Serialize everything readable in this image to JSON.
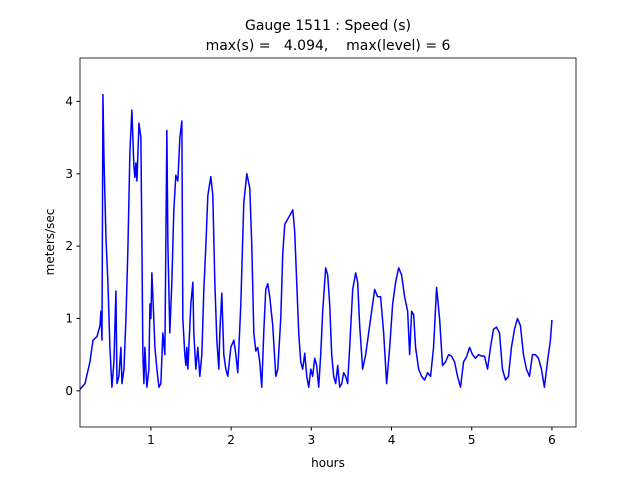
{
  "chart_data": {
    "type": "line",
    "title": "Gauge 1511 : Speed (s)",
    "subtitle": "max(s) =   4.094,    max(level) = 6",
    "xlabel": "hours",
    "ylabel": "meters/sec",
    "xlim": [
      0.116,
      6.3
    ],
    "ylim": [
      -0.5,
      4.6
    ],
    "xticks": [
      1,
      2,
      3,
      4,
      5,
      6
    ],
    "yticks": [
      0,
      1,
      2,
      3,
      4
    ],
    "grid": false,
    "series": [
      {
        "color": "#0000ff",
        "x": [
          0.116,
          0.178,
          0.24,
          0.278,
          0.328,
          0.365,
          0.377,
          0.39,
          0.402,
          0.415,
          0.44,
          0.464,
          0.489,
          0.514,
          0.539,
          0.564,
          0.577,
          0.601,
          0.626,
          0.639,
          0.664,
          0.689,
          0.714,
          0.738,
          0.763,
          0.788,
          0.801,
          0.813,
          0.826,
          0.851,
          0.875,
          0.888,
          0.9,
          0.913,
          0.925,
          0.938,
          0.95,
          0.975,
          0.988,
          1.0,
          1.012,
          1.025,
          1.05,
          1.075,
          1.1,
          1.124,
          1.149,
          1.174,
          1.199,
          1.212,
          1.236,
          1.261,
          1.286,
          1.311,
          1.336,
          1.361,
          1.386,
          1.398,
          1.423,
          1.436,
          1.448,
          1.461,
          1.473,
          1.498,
          1.523,
          1.535,
          1.56,
          1.585,
          1.61,
          1.635,
          1.66,
          1.685,
          1.71,
          1.747,
          1.772,
          1.797,
          1.822,
          1.847,
          1.859,
          1.884,
          1.909,
          1.934,
          1.959,
          1.996,
          2.034,
          2.059,
          2.083,
          2.121,
          2.158,
          2.196,
          2.233,
          2.258,
          2.283,
          2.308,
          2.332,
          2.357,
          2.382,
          2.407,
          2.432,
          2.457,
          2.482,
          2.519,
          2.557,
          2.582,
          2.619,
          2.644,
          2.669,
          2.694,
          2.719,
          2.744,
          2.769,
          2.793,
          2.818,
          2.843,
          2.868,
          2.893,
          2.918,
          2.943,
          2.968,
          2.993,
          3.017,
          3.042,
          3.067,
          3.092,
          3.117,
          3.142,
          3.179,
          3.204,
          3.229,
          3.254,
          3.279,
          3.304,
          3.329,
          3.354,
          3.379,
          3.403,
          3.428,
          3.453,
          3.478,
          3.516,
          3.553,
          3.578,
          3.603,
          3.64,
          3.678,
          3.715,
          3.752,
          3.79,
          3.827,
          3.864,
          3.902,
          3.939,
          3.977,
          4.014,
          4.051,
          4.089,
          4.126,
          4.163,
          4.201,
          4.226,
          4.251,
          4.276,
          4.3,
          4.338,
          4.375,
          4.412,
          4.45,
          4.487,
          4.524,
          4.562,
          4.599,
          4.636,
          4.674,
          4.711,
          4.748,
          4.786,
          4.823,
          4.86,
          4.898,
          4.935,
          4.973,
          5.01,
          5.047,
          5.085,
          5.122,
          5.159,
          5.197,
          5.234,
          5.271,
          5.309,
          5.346,
          5.383,
          5.421,
          5.458,
          5.495,
          5.533,
          5.57,
          5.607,
          5.645,
          5.682,
          5.72,
          5.757,
          5.794,
          5.832,
          5.869,
          5.906,
          5.944,
          5.981,
          6.0
        ],
        "values": [
          0.02,
          0.1,
          0.4,
          0.7,
          0.75,
          0.9,
          1.1,
          0.7,
          4.094,
          3.2,
          2.1,
          1.5,
          0.6,
          0.05,
          0.4,
          1.38,
          0.1,
          0.2,
          0.6,
          0.1,
          0.3,
          1.0,
          2.0,
          3.3,
          3.88,
          3.1,
          2.95,
          3.15,
          2.9,
          3.7,
          3.5,
          2.0,
          0.5,
          0.1,
          0.6,
          0.3,
          0.05,
          0.3,
          1.2,
          1.0,
          1.63,
          1.3,
          0.6,
          0.3,
          0.05,
          0.1,
          0.8,
          0.5,
          3.6,
          2.0,
          0.8,
          1.5,
          2.5,
          2.98,
          2.9,
          3.5,
          3.73,
          1.0,
          0.5,
          0.35,
          0.6,
          0.3,
          0.6,
          1.2,
          1.5,
          0.8,
          0.3,
          0.6,
          0.2,
          0.5,
          1.4,
          2.0,
          2.7,
          2.96,
          2.7,
          1.5,
          0.7,
          0.3,
          0.8,
          1.35,
          0.5,
          0.3,
          0.2,
          0.6,
          0.7,
          0.5,
          0.25,
          1.2,
          2.6,
          3.0,
          2.8,
          2.0,
          0.8,
          0.55,
          0.6,
          0.4,
          0.05,
          0.8,
          1.4,
          1.48,
          1.3,
          0.9,
          0.2,
          0.3,
          1.0,
          1.9,
          2.3,
          2.35,
          2.4,
          2.45,
          2.5,
          2.2,
          1.5,
          0.8,
          0.4,
          0.3,
          0.52,
          0.2,
          0.05,
          0.3,
          0.2,
          0.45,
          0.35,
          0.05,
          0.5,
          1.1,
          1.7,
          1.6,
          1.2,
          0.5,
          0.2,
          0.1,
          0.35,
          0.05,
          0.1,
          0.25,
          0.2,
          0.1,
          0.6,
          1.4,
          1.63,
          1.5,
          0.9,
          0.3,
          0.5,
          0.8,
          1.1,
          1.4,
          1.3,
          1.3,
          0.8,
          0.1,
          0.6,
          1.2,
          1.5,
          1.7,
          1.6,
          1.3,
          1.1,
          0.5,
          1.1,
          1.05,
          0.6,
          0.3,
          0.2,
          0.15,
          0.25,
          0.2,
          0.6,
          1.43,
          1.0,
          0.35,
          0.4,
          0.5,
          0.48,
          0.4,
          0.2,
          0.05,
          0.4,
          0.47,
          0.6,
          0.5,
          0.45,
          0.5,
          0.48,
          0.48,
          0.3,
          0.6,
          0.85,
          0.88,
          0.8,
          0.3,
          0.15,
          0.2,
          0.6,
          0.85,
          1.0,
          0.9,
          0.5,
          0.3,
          0.2,
          0.5,
          0.5,
          0.45,
          0.3,
          0.05,
          0.4,
          0.7,
          0.98
        ]
      }
    ]
  }
}
